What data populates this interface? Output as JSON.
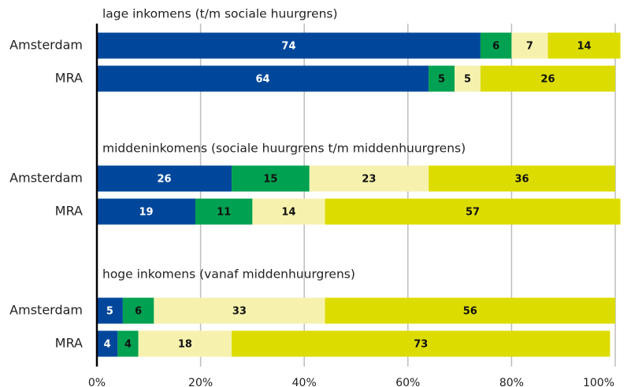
{
  "chart_data": [
    {
      "type": "bar",
      "orientation": "horizontal",
      "stacked": true,
      "title": "lage inkomens (t/m sociale huurgrens)",
      "categories": [
        "Amsterdam",
        "MRA"
      ],
      "series": [
        {
          "color": "#00479b",
          "values": [
            74,
            64
          ]
        },
        {
          "color": "#00a150",
          "values": [
            6,
            5
          ]
        },
        {
          "color": "#f6f2ae",
          "values": [
            7,
            5
          ]
        },
        {
          "color": "#dcdc00",
          "values": [
            14,
            26
          ]
        }
      ],
      "xlim": [
        0,
        100
      ]
    },
    {
      "type": "bar",
      "orientation": "horizontal",
      "stacked": true,
      "title": "middeninkomens (sociale huurgrens t/m middenhuurgrens)",
      "categories": [
        "Amsterdam",
        "MRA"
      ],
      "series": [
        {
          "color": "#00479b",
          "values": [
            26,
            19
          ]
        },
        {
          "color": "#00a150",
          "values": [
            15,
            11
          ]
        },
        {
          "color": "#f6f2ae",
          "values": [
            23,
            14
          ]
        },
        {
          "color": "#dcdc00",
          "values": [
            36,
            57
          ]
        }
      ],
      "xlim": [
        0,
        100
      ]
    },
    {
      "type": "bar",
      "orientation": "horizontal",
      "stacked": true,
      "title": "hoge inkomens (vanaf middenhuurgrens)",
      "categories": [
        "Amsterdam",
        "MRA"
      ],
      "series": [
        {
          "color": "#00479b",
          "values": [
            5,
            4
          ]
        },
        {
          "color": "#00a150",
          "values": [
            6,
            4
          ]
        },
        {
          "color": "#f6f2ae",
          "values": [
            33,
            18
          ]
        },
        {
          "color": "#dcdc00",
          "values": [
            56,
            73
          ]
        }
      ],
      "xlim": [
        0,
        100
      ],
      "xticks": [
        {
          "value": 0,
          "label": "0%"
        },
        {
          "value": 20,
          "label": "20%"
        },
        {
          "value": 40,
          "label": "40%"
        },
        {
          "value": 60,
          "label": "60%"
        },
        {
          "value": 80,
          "label": "80%"
        },
        {
          "value": 100,
          "label": "100%"
        }
      ],
      "grid": true
    }
  ]
}
